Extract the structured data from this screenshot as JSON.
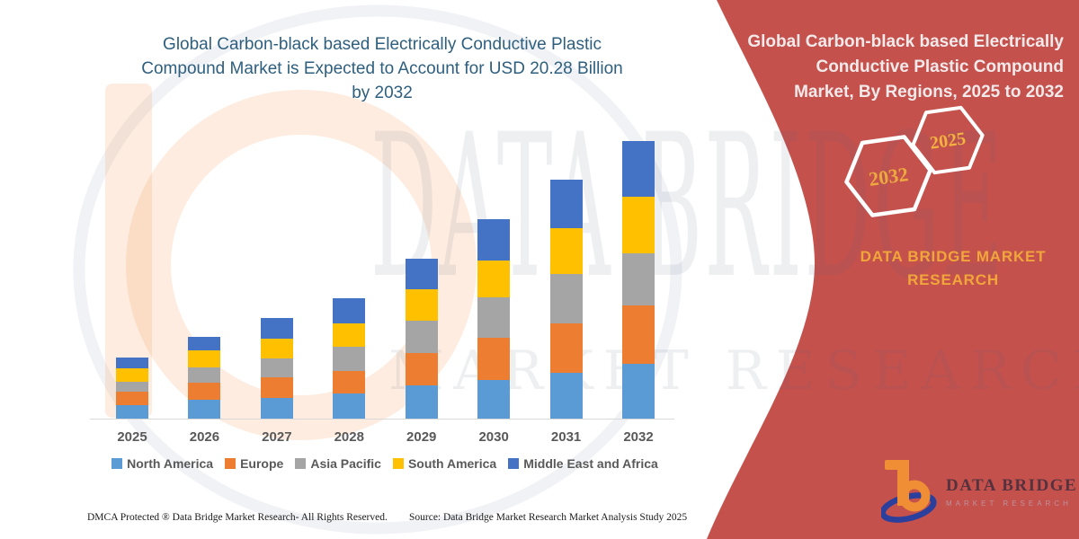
{
  "left_panel": {
    "title_lines": [
      "Global Carbon-black based Electrically Conductive Plastic",
      "Compound Market is Expected to Account for USD 20.28 Billion",
      "by 2032"
    ],
    "title_color": "#2E5F7E",
    "footer_left": "DMCA Protected ® Data Bridge Market Research- All Rights Reserved.",
    "footer_source": "Source: Data Bridge Market Research  Market Analysis Study 2025",
    "watermark_line1": "DATA BRIDGE",
    "watermark_line2": "MARKET RESEARCH"
  },
  "right_panel": {
    "bg_color": "#C5514D",
    "title_lines": [
      "Global Carbon-black based Electrically",
      "Conductive Plastic Compound",
      "Market, By Regions, 2025 to 2032"
    ],
    "hexagon_left_year": "2032",
    "hexagon_right_year": "2025",
    "hexagon_text_color": "#EFAC3C",
    "brand_line1": "DATA BRIDGE MARKET",
    "brand_line2": "RESEARCH",
    "brand_color": "#F0A63A"
  },
  "logo": {
    "name_text": "DATA BRIDGE",
    "subtext": "MARKET RESEARCH"
  },
  "chart_data": {
    "type": "bar",
    "stacked": true,
    "unit": "USD Billion (estimated from bar heights; 2032 total labeled 20.28)",
    "categories": [
      "2025",
      "2026",
      "2027",
      "2028",
      "2029",
      "2030",
      "2031",
      "2032"
    ],
    "series": [
      {
        "name": "North America",
        "color": "#5B9BD5",
        "values": [
          1.02,
          1.35,
          1.49,
          1.82,
          2.41,
          2.8,
          3.33,
          3.98
        ]
      },
      {
        "name": "Europe",
        "color": "#ED7D31",
        "values": [
          0.95,
          1.25,
          1.53,
          1.69,
          2.36,
          3.1,
          3.61,
          4.27
        ]
      },
      {
        "name": "Asia Pacific",
        "color": "#A5A5A5",
        "values": [
          0.7,
          1.16,
          1.38,
          1.75,
          2.36,
          2.97,
          3.61,
          3.83
        ]
      },
      {
        "name": "South America",
        "color": "#FFC000",
        "values": [
          1.03,
          1.2,
          1.46,
          1.71,
          2.34,
          2.67,
          3.35,
          4.15
        ]
      },
      {
        "name": "Middle East and Africa",
        "color": "#4472C4",
        "values": [
          0.79,
          0.98,
          1.49,
          1.79,
          2.19,
          3.06,
          3.54,
          4.05
        ]
      }
    ],
    "totals": [
      4.49,
      5.94,
      7.35,
      8.76,
      11.66,
      14.6,
      17.44,
      20.28
    ],
    "title": "Global Carbon-black based Electrically Conductive Plastic Compound Market is Expected to Account for USD 20.28 Billion by 2032",
    "xlabel": "",
    "ylabel": "",
    "y_axis_visible": false,
    "grid": false,
    "legend_position": "bottom"
  }
}
